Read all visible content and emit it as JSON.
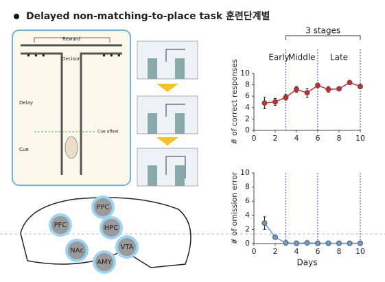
{
  "header": {
    "title": "Delayed non-matching-to-place task 훈련단계별"
  },
  "maze": {
    "reward": "Reward",
    "decision": "Decison",
    "delay": "Delay",
    "cue": "Cue",
    "cue_offset": "Cue offset"
  },
  "brain": {
    "regions": [
      "PPC",
      "PFC",
      "HPC",
      "NAc",
      "VTA",
      "AMY"
    ]
  },
  "chart_data": [
    {
      "type": "line",
      "ylabel": "# of correct responses",
      "annotation": "3 stages",
      "stages": [
        "Early",
        "Middle",
        "Late"
      ],
      "vlines": [
        3,
        6,
        10
      ],
      "xlim": [
        0,
        10
      ],
      "xticks": [
        0,
        2,
        4,
        6,
        8,
        10
      ],
      "ylim": [
        0,
        10
      ],
      "yticks": [
        0,
        2,
        4,
        6,
        8,
        10
      ],
      "series": [
        {
          "color": "#d62728",
          "x": [
            1,
            2,
            3,
            4,
            5,
            6,
            7,
            8,
            9,
            10
          ],
          "values": [
            4.8,
            5.0,
            5.8,
            7.2,
            6.6,
            7.9,
            7.2,
            7.3,
            8.4,
            7.7
          ],
          "errors": [
            1.0,
            0.6,
            0.5,
            0.5,
            0.8,
            0.4,
            0.5,
            0.3,
            0.3,
            0.4
          ]
        }
      ]
    },
    {
      "type": "line",
      "ylabel": "# of omission error",
      "xlabel": "Days",
      "vlines": [
        3,
        6,
        10
      ],
      "xlim": [
        0,
        10
      ],
      "xticks": [
        0,
        2,
        4,
        6,
        8,
        10
      ],
      "ylim": [
        0,
        10
      ],
      "yticks": [
        0,
        2,
        4,
        6,
        8,
        10
      ],
      "series": [
        {
          "color": "#6a9fd4",
          "x": [
            1,
            2,
            3,
            4,
            5,
            6,
            7,
            8,
            9,
            10
          ],
          "values": [
            2.9,
            0.9,
            0.1,
            0.05,
            0.1,
            0.05,
            0.05,
            0.05,
            0.05,
            0.05
          ],
          "errors": [
            0.9,
            0.2,
            0.1,
            0.05,
            0.05,
            0.05,
            0.05,
            0.05,
            0.05,
            0.05
          ]
        }
      ]
    }
  ]
}
